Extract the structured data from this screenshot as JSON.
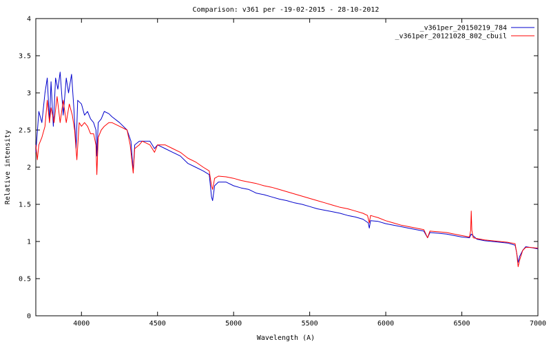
{
  "chart_data": {
    "type": "line",
    "title": "Comparison: v361 per -19-02-2015 - 28-10-2012",
    "xlabel": "Wavelength (A)",
    "ylabel": "Relative intensity",
    "xlim": [
      3700,
      7000
    ],
    "ylim": [
      0,
      4
    ],
    "xticks": [
      4000,
      4500,
      5000,
      5500,
      6000,
      6500,
      7000
    ],
    "yticks": [
      0,
      0.5,
      1,
      1.5,
      2,
      2.5,
      3,
      3.5,
      4
    ],
    "grid": false,
    "legend_position": "top-right",
    "series": [
      {
        "name": "_v361per_20150219_784",
        "color": "#0000cc",
        "points": [
          [
            3700,
            2.2
          ],
          [
            3720,
            2.75
          ],
          [
            3740,
            2.6
          ],
          [
            3760,
            3.0
          ],
          [
            3775,
            3.2
          ],
          [
            3790,
            2.6
          ],
          [
            3800,
            3.15
          ],
          [
            3815,
            2.55
          ],
          [
            3830,
            3.2
          ],
          [
            3845,
            3.05
          ],
          [
            3860,
            3.28
          ],
          [
            3880,
            2.7
          ],
          [
            3900,
            3.2
          ],
          [
            3915,
            3.0
          ],
          [
            3935,
            3.25
          ],
          [
            3950,
            2.8
          ],
          [
            3965,
            2.25
          ],
          [
            3975,
            2.9
          ],
          [
            4000,
            2.85
          ],
          [
            4020,
            2.7
          ],
          [
            4040,
            2.75
          ],
          [
            4060,
            2.65
          ],
          [
            4080,
            2.6
          ],
          [
            4095,
            2.5
          ],
          [
            4101,
            2.15
          ],
          [
            4110,
            2.6
          ],
          [
            4130,
            2.65
          ],
          [
            4150,
            2.75
          ],
          [
            4180,
            2.72
          ],
          [
            4200,
            2.68
          ],
          [
            4250,
            2.6
          ],
          [
            4300,
            2.5
          ],
          [
            4325,
            2.35
          ],
          [
            4340,
            1.95
          ],
          [
            4350,
            2.3
          ],
          [
            4380,
            2.35
          ],
          [
            4400,
            2.35
          ],
          [
            4450,
            2.35
          ],
          [
            4480,
            2.25
          ],
          [
            4500,
            2.3
          ],
          [
            4550,
            2.25
          ],
          [
            4600,
            2.2
          ],
          [
            4650,
            2.15
          ],
          [
            4700,
            2.05
          ],
          [
            4750,
            2.0
          ],
          [
            4800,
            1.95
          ],
          [
            4840,
            1.9
          ],
          [
            4855,
            1.6
          ],
          [
            4862,
            1.55
          ],
          [
            4875,
            1.75
          ],
          [
            4900,
            1.8
          ],
          [
            4950,
            1.8
          ],
          [
            5000,
            1.75
          ],
          [
            5050,
            1.72
          ],
          [
            5100,
            1.7
          ],
          [
            5150,
            1.65
          ],
          [
            5200,
            1.63
          ],
          [
            5250,
            1.6
          ],
          [
            5300,
            1.57
          ],
          [
            5350,
            1.55
          ],
          [
            5400,
            1.52
          ],
          [
            5450,
            1.5
          ],
          [
            5500,
            1.47
          ],
          [
            5550,
            1.44
          ],
          [
            5600,
            1.42
          ],
          [
            5650,
            1.4
          ],
          [
            5700,
            1.38
          ],
          [
            5750,
            1.35
          ],
          [
            5800,
            1.33
          ],
          [
            5850,
            1.3
          ],
          [
            5885,
            1.25
          ],
          [
            5892,
            1.18
          ],
          [
            5900,
            1.28
          ],
          [
            5950,
            1.27
          ],
          [
            6000,
            1.24
          ],
          [
            6050,
            1.22
          ],
          [
            6100,
            1.2
          ],
          [
            6150,
            1.18
          ],
          [
            6200,
            1.16
          ],
          [
            6250,
            1.14
          ],
          [
            6275,
            1.05
          ],
          [
            6290,
            1.12
          ],
          [
            6350,
            1.11
          ],
          [
            6400,
            1.1
          ],
          [
            6450,
            1.08
          ],
          [
            6500,
            1.06
          ],
          [
            6550,
            1.05
          ],
          [
            6562,
            1.1
          ],
          [
            6600,
            1.03
          ],
          [
            6650,
            1.01
          ],
          [
            6700,
            1.0
          ],
          [
            6750,
            0.99
          ],
          [
            6800,
            0.98
          ],
          [
            6850,
            0.95
          ],
          [
            6860,
            0.85
          ],
          [
            6870,
            0.72
          ],
          [
            6880,
            0.8
          ],
          [
            6900,
            0.88
          ],
          [
            6920,
            0.93
          ],
          [
            6950,
            0.92
          ],
          [
            7000,
            0.9
          ]
        ]
      },
      {
        "name": "_v361per_20121028_802_cbuil",
        "color": "#ff0000",
        "points": [
          [
            3700,
            2.3
          ],
          [
            3710,
            2.1
          ],
          [
            3720,
            2.3
          ],
          [
            3740,
            2.4
          ],
          [
            3760,
            2.55
          ],
          [
            3775,
            2.9
          ],
          [
            3790,
            2.6
          ],
          [
            3800,
            2.8
          ],
          [
            3820,
            2.6
          ],
          [
            3840,
            2.95
          ],
          [
            3860,
            2.6
          ],
          [
            3880,
            2.9
          ],
          [
            3900,
            2.6
          ],
          [
            3920,
            2.85
          ],
          [
            3940,
            2.7
          ],
          [
            3955,
            2.5
          ],
          [
            3970,
            2.1
          ],
          [
            3985,
            2.6
          ],
          [
            4000,
            2.55
          ],
          [
            4020,
            2.6
          ],
          [
            4040,
            2.55
          ],
          [
            4060,
            2.45
          ],
          [
            4080,
            2.45
          ],
          [
            4095,
            2.3
          ],
          [
            4101,
            1.9
          ],
          [
            4110,
            2.4
          ],
          [
            4130,
            2.5
          ],
          [
            4150,
            2.55
          ],
          [
            4180,
            2.6
          ],
          [
            4200,
            2.6
          ],
          [
            4250,
            2.55
          ],
          [
            4300,
            2.5
          ],
          [
            4320,
            2.3
          ],
          [
            4340,
            1.92
          ],
          [
            4350,
            2.25
          ],
          [
            4380,
            2.3
          ],
          [
            4400,
            2.35
          ],
          [
            4450,
            2.3
          ],
          [
            4480,
            2.2
          ],
          [
            4500,
            2.3
          ],
          [
            4550,
            2.3
          ],
          [
            4600,
            2.25
          ],
          [
            4650,
            2.2
          ],
          [
            4700,
            2.12
          ],
          [
            4750,
            2.07
          ],
          [
            4800,
            2.0
          ],
          [
            4840,
            1.95
          ],
          [
            4855,
            1.75
          ],
          [
            4862,
            1.7
          ],
          [
            4875,
            1.85
          ],
          [
            4900,
            1.88
          ],
          [
            4950,
            1.87
          ],
          [
            5000,
            1.85
          ],
          [
            5050,
            1.82
          ],
          [
            5100,
            1.8
          ],
          [
            5150,
            1.78
          ],
          [
            5200,
            1.75
          ],
          [
            5250,
            1.73
          ],
          [
            5300,
            1.7
          ],
          [
            5350,
            1.67
          ],
          [
            5400,
            1.64
          ],
          [
            5450,
            1.61
          ],
          [
            5500,
            1.58
          ],
          [
            5550,
            1.55
          ],
          [
            5600,
            1.52
          ],
          [
            5650,
            1.49
          ],
          [
            5700,
            1.46
          ],
          [
            5750,
            1.44
          ],
          [
            5800,
            1.41
          ],
          [
            5850,
            1.38
          ],
          [
            5880,
            1.35
          ],
          [
            5892,
            1.25
          ],
          [
            5900,
            1.35
          ],
          [
            5950,
            1.32
          ],
          [
            6000,
            1.28
          ],
          [
            6050,
            1.25
          ],
          [
            6100,
            1.22
          ],
          [
            6150,
            1.2
          ],
          [
            6200,
            1.18
          ],
          [
            6250,
            1.16
          ],
          [
            6275,
            1.05
          ],
          [
            6290,
            1.14
          ],
          [
            6350,
            1.13
          ],
          [
            6400,
            1.12
          ],
          [
            6450,
            1.1
          ],
          [
            6500,
            1.08
          ],
          [
            6550,
            1.06
          ],
          [
            6558,
            1.15
          ],
          [
            6562,
            1.41
          ],
          [
            6566,
            1.15
          ],
          [
            6575,
            1.05
          ],
          [
            6600,
            1.04
          ],
          [
            6650,
            1.02
          ],
          [
            6700,
            1.01
          ],
          [
            6750,
            1.0
          ],
          [
            6800,
            0.99
          ],
          [
            6850,
            0.97
          ],
          [
            6860,
            0.85
          ],
          [
            6870,
            0.66
          ],
          [
            6880,
            0.75
          ],
          [
            6900,
            0.88
          ],
          [
            6920,
            0.92
          ],
          [
            6950,
            0.92
          ],
          [
            7000,
            0.91
          ]
        ]
      }
    ]
  }
}
